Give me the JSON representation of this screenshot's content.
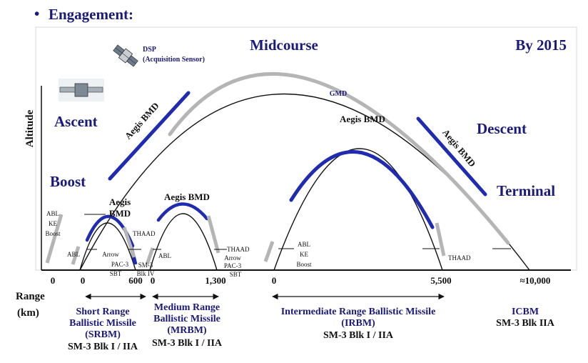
{
  "header": {
    "bullet": "•",
    "title": "Engagement:",
    "timeframe": "By 2015"
  },
  "axes": {
    "ylabel": "Altitude",
    "xlabel_line1": "Range",
    "xlabel_line2": "(km)"
  },
  "phases": {
    "boost": "Boost",
    "ascent": "Ascent",
    "midcourse": "Midcourse",
    "descent": "Descent",
    "terminal": "Terminal"
  },
  "sensor": {
    "name": "DSP",
    "desc": "(Acquisition Sensor)"
  },
  "labels": {
    "gmd": "GMD",
    "aegis_ascent": "Aegis BMD",
    "aegis_descent": "Aegis BMD",
    "aegis_irbm": "Aegis BMD",
    "aegis_mrbm": "Aegis BMD",
    "aegis_srbm_1": "Aegis",
    "aegis_srbm_2": "BMD",
    "abl_ke_boost_left": [
      "ABL",
      "KE",
      "Boost"
    ],
    "abl_ke_boost_irbm": [
      "ABL",
      "KE",
      "Boost"
    ],
    "abl_srbm": "ABL",
    "abl_mrbm": "ABL",
    "thaad_srbm": "THAAD",
    "thaad_mrbm": "THAAD",
    "thaad_irbm": "THAAD",
    "arrow_pac3_sbt_srbm": [
      "Arrow",
      "PAC-3",
      "SBT"
    ],
    "arrow_pac3_sbt_mrbm": [
      "Arrow",
      "PAC-3",
      "SBT"
    ],
    "sm3_blk_iv": [
      "SM-3",
      "Blk IV"
    ]
  },
  "ticks": {
    "t0a": "0",
    "t0b": "0",
    "t600": "600",
    "t0c": "0",
    "t1300": "1,300",
    "t0d": "0",
    "t5500": "5,500",
    "t10000": "≈10,000"
  },
  "categories": {
    "srbm": {
      "lines": [
        "Short Range",
        "Ballistic Missile",
        "(SRBM)"
      ],
      "interceptor": "SM-3 Blk I / IIA"
    },
    "mrbm": {
      "lines": [
        "Medium Range",
        "Ballistic Missile",
        "(MRBM)"
      ],
      "interceptor": "SM-3 Blk I / IIA"
    },
    "irbm": {
      "lines": [
        "Intermediate Range Ballistic Missile",
        "(IRBM)"
      ],
      "interceptor": "SM-3 Blk I / IIA"
    },
    "icbm": {
      "lines": [
        "ICBM"
      ],
      "interceptor": "SM-3 Blk IIA"
    }
  },
  "colors": {
    "navy": "#1a1a7a",
    "blue_segment": "#1f2bb0",
    "gray_segment": "#b5b5b5"
  }
}
